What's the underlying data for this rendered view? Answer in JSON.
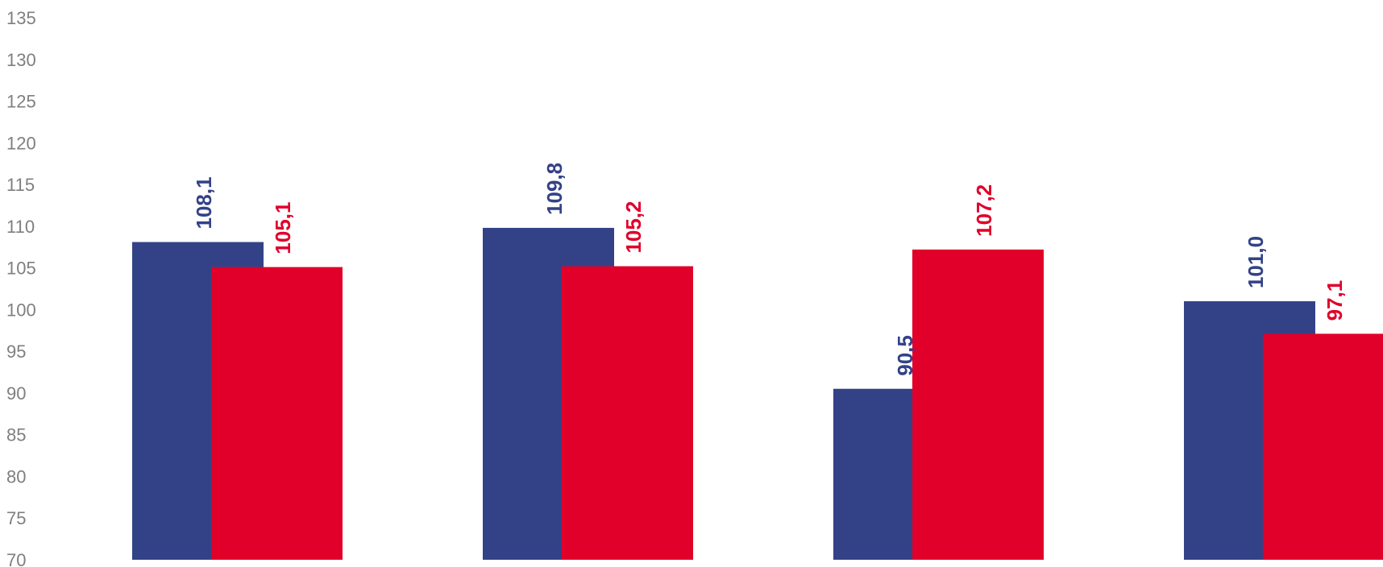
{
  "chart_data": {
    "type": "bar",
    "categories": [
      "",
      "",
      "",
      ""
    ],
    "series": [
      {
        "values": [
          108.1,
          109.8,
          90.5,
          101.0
        ],
        "labels": [
          "108,1",
          "109,8",
          "90,5",
          "101,0"
        ],
        "color": "#334287"
      },
      {
        "values": [
          105.1,
          105.2,
          107.2,
          97.1
        ],
        "labels": [
          "105,1",
          "105,2",
          "107,2",
          "97,1"
        ],
        "color": "#e0002a"
      }
    ],
    "yticks": [
      70,
      75,
      80,
      85,
      90,
      95,
      100,
      105,
      110,
      115,
      120,
      125,
      130,
      135
    ],
    "ylim": [
      70,
      135
    ],
    "grid": false,
    "legend": "none",
    "title": "",
    "xlabel": "",
    "ylabel": ""
  }
}
